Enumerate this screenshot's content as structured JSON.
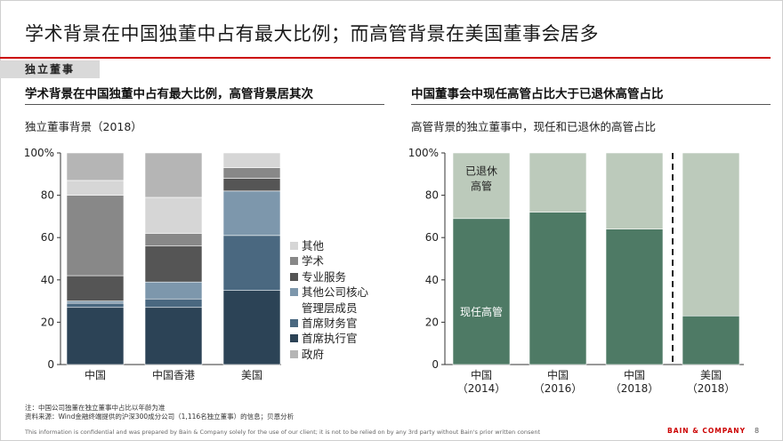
{
  "slide": {
    "title": "学术背景在中国独董中占有最大比例；而高管背景在美国董事会居多",
    "section_tag": "独立董事",
    "notes": [
      "注：中国公司独董在独立董事中占比以年龄为准",
      "资料来源：Wind金融终端提供的沪深300成分公司（1,116名独立董事）的信息；贝恩分析"
    ],
    "footer": "This information is confidential and was prepared by Bain & Company solely for the use of our client; it is not to be relied on by any 3rd party without Bain's prior written consent",
    "brand": "BAIN & COMPANY",
    "page_number": "8"
  },
  "left_panel": {
    "heading": "学术背景在中国独董中占有最大比例，高管背景居其次",
    "subtitle": "独立董事背景（2018）"
  },
  "right_panel": {
    "heading": "中国董事会中现任高管占比大于已退休高管占比",
    "subtitle": "高管背景的独立董事中，现任和已退休的高管占比"
  },
  "chart_data": [
    {
      "type": "bar",
      "stacked": true,
      "categories": [
        "中国",
        "中国香港",
        "美国"
      ],
      "yticks": [
        "0",
        "20",
        "40",
        "60",
        "80",
        "100%"
      ],
      "ylim": [
        0,
        100
      ],
      "legend_position": "right",
      "series": [
        {
          "name": "首席执行官",
          "color": "#2c4356",
          "values": [
            27,
            27,
            35
          ]
        },
        {
          "name": "首席财务官",
          "color": "#4a6880",
          "values": [
            2,
            4,
            26
          ]
        },
        {
          "name": "其他公司核心管理层成员",
          "label_lines": [
            "其他公司核心",
            "管理层成员"
          ],
          "color": "#7d97ac",
          "values": [
            1,
            8,
            21
          ]
        },
        {
          "name": "专业服务",
          "color": "#555555",
          "values": [
            12,
            17,
            6
          ]
        },
        {
          "name": "学术",
          "color": "#888888",
          "values": [
            38,
            6,
            5
          ]
        },
        {
          "name": "其他",
          "color": "#d6d6d6",
          "values": [
            7,
            17,
            7
          ]
        },
        {
          "name": "政府",
          "color": "#b5b5b5",
          "values": [
            13,
            21,
            0
          ]
        }
      ],
      "legend_order": [
        "其他",
        "学术",
        "专业服务",
        "其他公司核心管理层成员",
        "首席财务官",
        "首席执行官",
        "政府"
      ]
    },
    {
      "type": "bar",
      "stacked": true,
      "categories": [
        "中国\n（2014）",
        "中国\n（2016）",
        "中国\n（2018）",
        "美国\n（2018）"
      ],
      "yticks": [
        "0",
        "20",
        "40",
        "60",
        "80",
        "100%"
      ],
      "ylim": [
        0,
        100
      ],
      "series": [
        {
          "name": "现任高管",
          "color": "#4e7a65",
          "values": [
            69,
            72,
            64,
            23
          ]
        },
        {
          "name": "已退休高管",
          "label_lines": [
            "已退休",
            "高管"
          ],
          "color": "#bccabb",
          "values": [
            31,
            28,
            36,
            77
          ]
        }
      ]
    }
  ]
}
